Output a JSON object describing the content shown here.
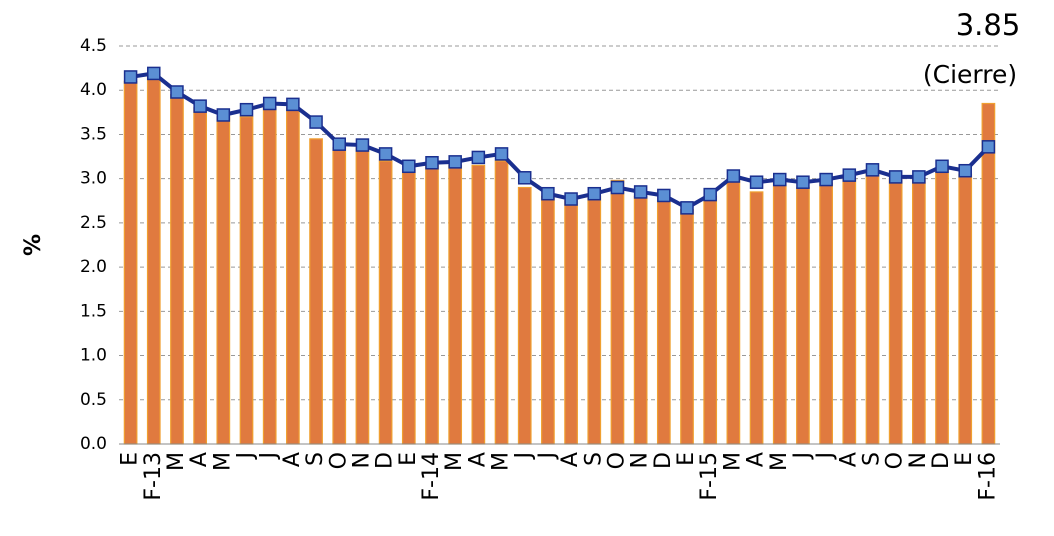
{
  "chart_data": {
    "type": "bar_line",
    "y_label": "%",
    "annotations": [
      "3.85",
      "(Cierre)"
    ],
    "categories": [
      "E",
      "F-13",
      "M",
      "A",
      "M",
      "J",
      "J",
      "A",
      "S",
      "O",
      "N",
      "D",
      "E",
      "F-14",
      "M",
      "A",
      "M",
      "J",
      "J",
      "A",
      "S",
      "O",
      "N",
      "D",
      "E",
      "F-15",
      "M",
      "A",
      "M",
      "J",
      "J",
      "A",
      "S",
      "O",
      "N",
      "D",
      "E",
      "F-16"
    ],
    "series": [
      {
        "kind": "bar",
        "color": "#e07a3f",
        "values": [
          4.1,
          4.15,
          3.95,
          3.8,
          3.7,
          3.7,
          3.8,
          3.8,
          3.45,
          3.35,
          3.35,
          3.2,
          3.1,
          3.15,
          3.15,
          3.15,
          3.2,
          2.9,
          2.8,
          2.75,
          2.8,
          2.98,
          2.8,
          2.75,
          2.65,
          2.8,
          3.0,
          2.85,
          2.95,
          2.9,
          2.95,
          3.0,
          3.05,
          3.0,
          3.0,
          3.1,
          3.05,
          3.85
        ]
      },
      {
        "kind": "line",
        "color": "#1a2f8f",
        "marker_color": "#5b8fd4",
        "values": [
          4.15,
          4.19,
          3.98,
          3.82,
          3.72,
          3.78,
          3.85,
          3.84,
          3.64,
          3.39,
          3.38,
          3.28,
          3.14,
          3.18,
          3.19,
          3.24,
          3.28,
          3.01,
          2.83,
          2.77,
          2.83,
          2.9,
          2.85,
          2.81,
          2.67,
          2.82,
          3.03,
          2.96,
          2.99,
          2.96,
          2.99,
          3.04,
          3.1,
          3.02,
          3.02,
          3.14,
          3.09,
          3.36
        ]
      }
    ],
    "ylim": [
      0,
      4.5
    ],
    "yticks": [
      {
        "value": 0,
        "label": "0.0"
      },
      0.5,
      {
        "value": 1,
        "label": "1.0"
      },
      1.5,
      {
        "value": 2,
        "label": "2.0"
      },
      2.5,
      {
        "value": 3,
        "label": "3.0"
      },
      3.5,
      {
        "value": 4,
        "label": "4.0"
      },
      4.5
    ],
    "grid": true
  }
}
